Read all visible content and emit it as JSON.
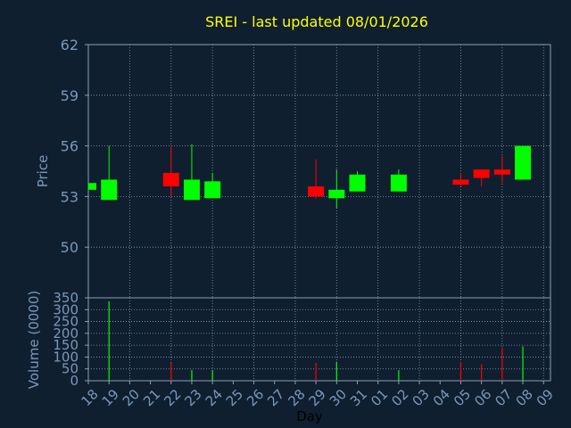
{
  "colors": {
    "background": "#0f1f30",
    "text": "#7b97b8",
    "title": "#ffff00",
    "grid": "#8aa0b4",
    "up": "#00ff00",
    "down": "#ff0000"
  },
  "chart_data": [
    {
      "type": "candlestick",
      "title": "SREI - last updated 08/01/2026",
      "ylabel": "Price",
      "ylim": [
        47,
        62
      ],
      "yticks": [
        50,
        53,
        56,
        59,
        62
      ],
      "grid": true,
      "candles": [
        {
          "day": "18",
          "open": 53.4,
          "close": 53.8,
          "high": 53.8,
          "low": 53.4
        },
        {
          "day": "19",
          "open": 52.8,
          "close": 54.0,
          "high": 56.0,
          "low": 52.8
        },
        {
          "day": "22",
          "open": 54.4,
          "close": 53.6,
          "high": 56.0,
          "low": 53.0
        },
        {
          "day": "23",
          "open": 52.8,
          "close": 54.0,
          "high": 56.1,
          "low": 52.8
        },
        {
          "day": "24",
          "open": 52.9,
          "close": 53.9,
          "high": 54.4,
          "low": 52.9
        },
        {
          "day": "29",
          "open": 53.6,
          "close": 53.0,
          "high": 55.2,
          "low": 52.9
        },
        {
          "day": "30",
          "open": 52.9,
          "close": 53.4,
          "high": 54.6,
          "low": 52.3
        },
        {
          "day": "31",
          "open": 53.3,
          "close": 54.3,
          "high": 54.5,
          "low": 53.3
        },
        {
          "day": "02",
          "open": 53.3,
          "close": 54.3,
          "high": 54.6,
          "low": 53.3
        },
        {
          "day": "05",
          "open": 54.0,
          "close": 53.7,
          "high": 54.4,
          "low": 53.6
        },
        {
          "day": "06",
          "open": 54.6,
          "close": 54.1,
          "high": 54.6,
          "low": 53.6
        },
        {
          "day": "07",
          "open": 54.6,
          "close": 54.3,
          "high": 55.4,
          "low": 53.8
        },
        {
          "day": "08",
          "open": 54.0,
          "close": 56.0,
          "high": 56.0,
          "low": 54.0
        }
      ]
    },
    {
      "type": "bar",
      "ylabel": "Volume (0000)",
      "xlabel": "Day",
      "ylim": [
        0,
        350
      ],
      "yticks": [
        0,
        50,
        100,
        150,
        200,
        250,
        300,
        350
      ],
      "categories": [
        "18",
        "19",
        "20",
        "21",
        "22",
        "23",
        "24",
        "25",
        "26",
        "27",
        "28",
        "29",
        "30",
        "31",
        "01",
        "02",
        "03",
        "04",
        "05",
        "06",
        "07",
        "08",
        "09"
      ],
      "bars": [
        {
          "day": "19",
          "value": 335,
          "direction": "up"
        },
        {
          "day": "22",
          "value": 75,
          "direction": "down"
        },
        {
          "day": "23",
          "value": 45,
          "direction": "up"
        },
        {
          "day": "24",
          "value": 45,
          "direction": "up"
        },
        {
          "day": "29",
          "value": 75,
          "direction": "down"
        },
        {
          "day": "30",
          "value": 80,
          "direction": "up"
        },
        {
          "day": "02",
          "value": 45,
          "direction": "up"
        },
        {
          "day": "05",
          "value": 80,
          "direction": "down"
        },
        {
          "day": "06",
          "value": 70,
          "direction": "down"
        },
        {
          "day": "07",
          "value": 140,
          "direction": "down"
        },
        {
          "day": "08",
          "value": 145,
          "direction": "up"
        }
      ]
    }
  ]
}
